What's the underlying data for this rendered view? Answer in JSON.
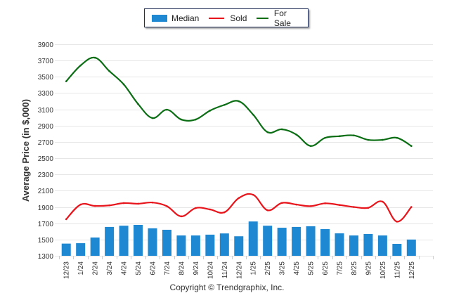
{
  "chart_data": {
    "type": "bar",
    "title": "",
    "xlabel": "",
    "ylabel": "Average Price (in $,000)",
    "ylim": [
      1300,
      3900
    ],
    "yticks": [
      1300,
      1500,
      1700,
      1900,
      2100,
      2300,
      2500,
      2700,
      2900,
      3100,
      3300,
      3500,
      3700,
      3900
    ],
    "grid": true,
    "legend_position": "top-center",
    "categories": [
      "12/23",
      "1/24",
      "2/24",
      "3/24",
      "4/24",
      "5/24",
      "6/24",
      "7/24",
      "8/24",
      "9/24",
      "10/24",
      "11/24",
      "12/24",
      "1/25",
      "2/25",
      "3/25",
      "4/25",
      "5/25",
      "6/25",
      "7/25",
      "8/25",
      "9/25",
      "10/25",
      "11/25",
      "12/25"
    ],
    "series": [
      {
        "name": "Median",
        "type": "bar",
        "color": "#1e88d2",
        "values": [
          1450,
          1455,
          1525,
          1655,
          1670,
          1680,
          1638,
          1620,
          1550,
          1550,
          1560,
          1575,
          1540,
          1722,
          1670,
          1645,
          1655,
          1663,
          1628,
          1576,
          1550,
          1568,
          1550,
          1447,
          1500
        ]
      },
      {
        "name": "Sold",
        "type": "line",
        "color": "#e8141b",
        "values": [
          1750,
          1930,
          1913,
          1920,
          1948,
          1940,
          1955,
          1910,
          1785,
          1887,
          1870,
          1835,
          2010,
          2050,
          1860,
          1950,
          1930,
          1910,
          1945,
          1925,
          1900,
          1890,
          1965,
          1720,
          1900
        ]
      },
      {
        "name": "For Sale",
        "type": "line",
        "color": "#0b6e14",
        "values": [
          3445,
          3640,
          3735,
          3570,
          3407,
          3165,
          2993,
          3096,
          2975,
          2975,
          3085,
          3155,
          3200,
          3035,
          2820,
          2855,
          2790,
          2650,
          2750,
          2770,
          2780,
          2725,
          2725,
          2750,
          2650
        ]
      }
    ]
  },
  "legend": {
    "items": [
      {
        "label": "Median",
        "kind": "bar",
        "color": "#1e88d2"
      },
      {
        "label": "Sold",
        "kind": "line",
        "color": "#e8141b"
      },
      {
        "label": "For Sale",
        "kind": "line",
        "color": "#0b6e14"
      }
    ]
  },
  "footer": {
    "copyright": "Copyright © Trendgraphix, Inc."
  }
}
